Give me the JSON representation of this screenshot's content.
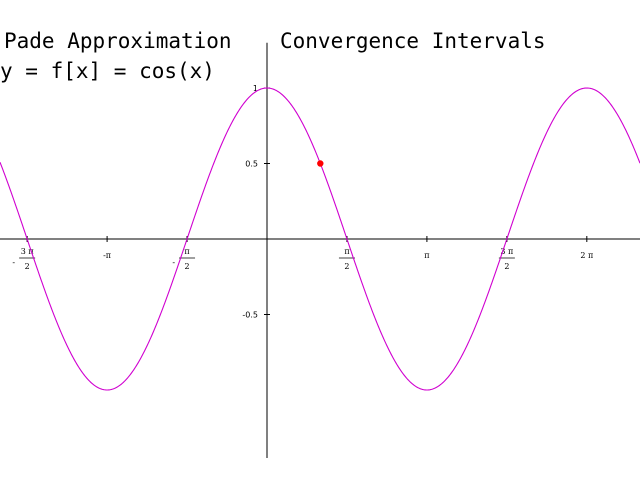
{
  "chart_data": {
    "type": "line",
    "title": "Pade Approximation",
    "subtitle": "Convergence Intervals",
    "function_label": "y = f[x] = cos(x)",
    "xlabel": "",
    "ylabel": "",
    "xlim": [
      -5.2,
      11.4
    ],
    "ylim": [
      -1.45,
      1.3
    ],
    "grid": false,
    "series": [
      {
        "function": "cos",
        "color": "#d000d0"
      }
    ],
    "highlight_point": {
      "x": 1.0472,
      "y": 0.5,
      "color": "#ff0000"
    },
    "x_ticks": [
      {
        "value": -4.712389,
        "sign": "-",
        "numerator": "3 π",
        "denominator": "2",
        "fraction": true
      },
      {
        "value": -3.141593,
        "text": "-π",
        "fraction": false
      },
      {
        "value": -1.570796,
        "sign": "-",
        "numerator": "π",
        "denominator": "2",
        "fraction": true
      },
      {
        "value": 1.570796,
        "sign": "",
        "numerator": "π",
        "denominator": "2",
        "fraction": true
      },
      {
        "value": 3.141593,
        "text": "π",
        "fraction": false
      },
      {
        "value": 4.712389,
        "sign": "",
        "numerator": "3 π",
        "denominator": "2",
        "fraction": true
      },
      {
        "value": 6.283185,
        "text": "2 π",
        "fraction": false
      }
    ],
    "y_ticks": [
      {
        "value": 1,
        "label": "1"
      },
      {
        "value": 0.5,
        "label": "0.5"
      },
      {
        "value": -0.5,
        "label": "-0.5"
      }
    ]
  }
}
